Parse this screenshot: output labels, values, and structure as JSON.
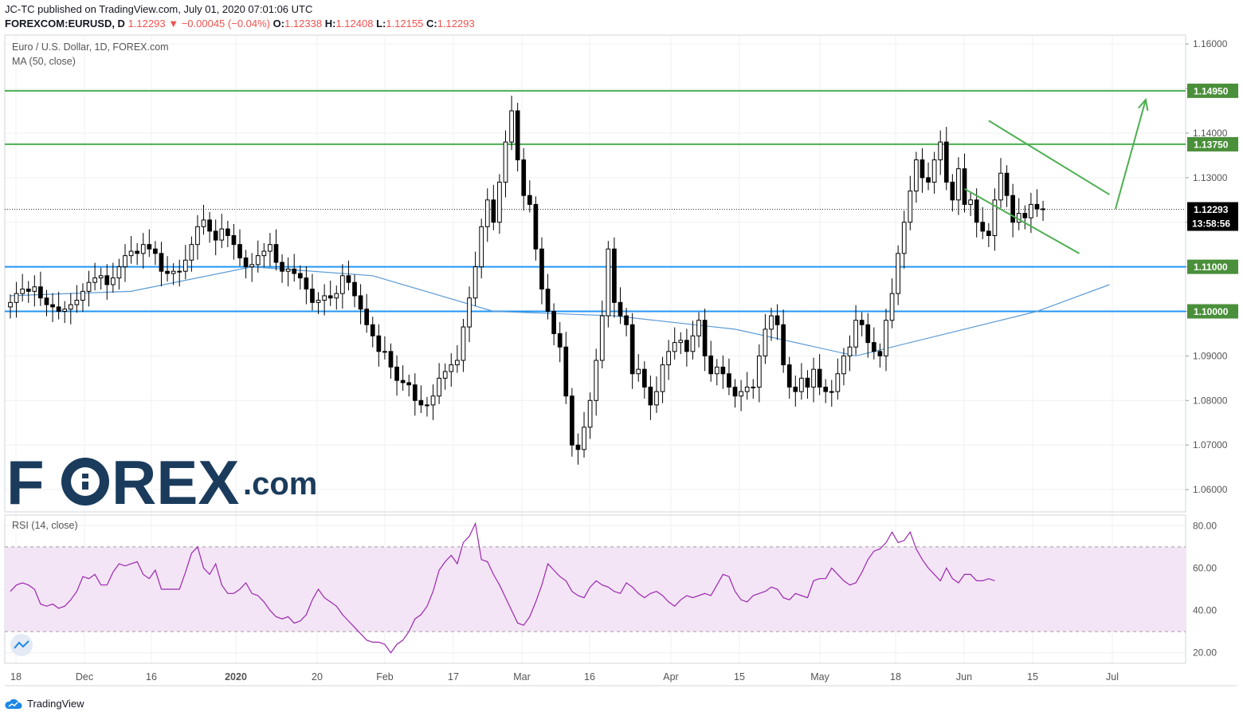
{
  "header": {
    "published_by": "JC-TC published on TradingView.com, July 01, 2020 07:01:06 UTC",
    "symbol": "FOREXCOM:EURUSD, D",
    "last": "1.12293",
    "change": "−0.00045 (−0.04%)",
    "open_label": "O:",
    "open": "1.12338",
    "high_label": "H:",
    "high": "1.12408",
    "low_label": "L:",
    "low": "1.12155",
    "close_label": "C:",
    "close": "1.12293"
  },
  "chart_title": "Euro / U.S. Dollar, 1D, FOREX.com",
  "ma_label": "MA (50, close)",
  "rsi_label": "RSI (14, close)",
  "watermark": {
    "text_a": "F",
    "text_b": "REX",
    "text_c": ".com"
  },
  "footer_brand": "TradingView",
  "colors": {
    "up": "#ffffff",
    "down": "#000000",
    "green_level": "#4caf50",
    "blue_level": "#2196f3",
    "ma": "#5b9bd5",
    "rsi": "#9c27b0",
    "rsi_band": "#f3e5f5"
  },
  "chart_data": [
    {
      "type": "candlestick",
      "title": "Euro / U.S. Dollar, 1D, FOREX.com",
      "ylim": [
        1.055,
        1.162
      ],
      "yticks": [
        "1.06000",
        "1.07000",
        "1.08000",
        "1.09000",
        "1.10000",
        "1.11000",
        "1.12000",
        "1.13000",
        "1.14000",
        "1.15000",
        "1.16000"
      ],
      "xticks": [
        "18",
        "Dec",
        "16",
        "2020",
        "20",
        "Feb",
        "17",
        "Mar",
        "16",
        "Apr",
        "15",
        "May",
        "18",
        "Jun",
        "15",
        "Jul"
      ],
      "price_labels": {
        "current": "1.12293",
        "countdown": "13:58:56"
      },
      "levels": [
        {
          "value": 1.1495,
          "label": "1.14950",
          "color": "#4caf50"
        },
        {
          "value": 1.1375,
          "label": "1.13750",
          "color": "#4caf50"
        },
        {
          "value": 1.11,
          "label": "1.11000",
          "color": "#2196f3"
        },
        {
          "value": 1.1,
          "label": "1.10000",
          "color": "#2196f3"
        }
      ],
      "closes": [
        1.102,
        1.104,
        1.105,
        1.1045,
        1.1055,
        1.103,
        1.1015,
        1.101,
        1.1,
        1.1005,
        1.1015,
        1.1025,
        1.1045,
        1.1065,
        1.1075,
        1.108,
        1.106,
        1.1075,
        1.11,
        1.1125,
        1.1135,
        1.113,
        1.115,
        1.114,
        1.113,
        1.109,
        1.1085,
        1.109,
        1.109,
        1.1115,
        1.115,
        1.119,
        1.1205,
        1.118,
        1.116,
        1.1185,
        1.117,
        1.115,
        1.112,
        1.11,
        1.1105,
        1.1125,
        1.1135,
        1.115,
        1.111,
        1.109,
        1.1095,
        1.1085,
        1.1075,
        1.105,
        1.102,
        1.1025,
        1.1035,
        1.103,
        1.104,
        1.108,
        1.1065,
        1.1035,
        1.1005,
        1.097,
        1.0945,
        1.091,
        1.091,
        1.0875,
        1.0845,
        1.084,
        1.0835,
        1.08,
        1.079,
        1.079,
        1.081,
        1.085,
        1.0865,
        1.088,
        1.089,
        1.0965,
        1.103,
        1.11,
        1.119,
        1.125,
        1.12,
        1.129,
        1.138,
        1.145,
        1.134,
        1.126,
        1.124,
        1.114,
        1.105,
        1.1,
        1.095,
        1.092,
        1.081,
        1.07,
        1.069,
        1.074,
        1.08,
        1.089,
        1.099,
        1.114,
        1.102,
        1.099,
        1.097,
        1.086,
        1.087,
        1.083,
        1.079,
        1.082,
        1.088,
        1.091,
        1.093,
        1.0935,
        1.091,
        1.0945,
        1.098,
        1.09,
        1.086,
        1.0875,
        1.086,
        1.083,
        1.081,
        1.082,
        1.083,
        1.083,
        1.09,
        1.096,
        1.099,
        1.097,
        1.088,
        1.083,
        1.082,
        1.085,
        1.083,
        1.087,
        1.083,
        1.082,
        1.082,
        1.086,
        1.09,
        1.092,
        1.098,
        1.097,
        1.093,
        1.091,
        1.09,
        1.098,
        1.104,
        1.113,
        1.12,
        1.127,
        1.134,
        1.13,
        1.129,
        1.134,
        1.138,
        1.129,
        1.125,
        1.132,
        1.124,
        1.125,
        1.12,
        1.118,
        1.117,
        1.125,
        1.131,
        1.126,
        1.12,
        1.122,
        1.121,
        1.124,
        1.123,
        1.1229
      ],
      "ma50": [
        {
          "i": 0,
          "v": 1.1035
        },
        {
          "i": 20,
          "v": 1.1045
        },
        {
          "i": 40,
          "v": 1.11
        },
        {
          "i": 60,
          "v": 1.108
        },
        {
          "i": 80,
          "v": 1.1
        },
        {
          "i": 100,
          "v": 1.099
        },
        {
          "i": 120,
          "v": 1.096
        },
        {
          "i": 140,
          "v": 1.09
        },
        {
          "i": 155,
          "v": 1.095
        },
        {
          "i": 170,
          "v": 1.1
        },
        {
          "i": 182,
          "v": 1.106
        }
      ],
      "patterns": {
        "channel_upper": [
          {
            "i": 162,
            "v": 1.1428
          },
          {
            "i": 182,
            "v": 1.1262
          }
        ],
        "channel_lower": [
          {
            "i": 158,
            "v": 1.1275
          },
          {
            "i": 177,
            "v": 1.113
          }
        ],
        "arrow": [
          {
            "i": 183,
            "v": 1.123
          },
          {
            "i": 188,
            "v": 1.1475
          }
        ]
      }
    },
    {
      "type": "line",
      "title": "RSI (14, close)",
      "ylim": [
        15,
        85
      ],
      "yticks": [
        "20.00",
        "40.00",
        "60.00",
        "80.00"
      ],
      "bands": [
        30,
        70
      ],
      "series": [
        {
          "values": [
            49,
            52,
            53,
            52,
            50,
            43,
            42,
            43,
            41,
            42,
            45,
            49,
            56,
            55,
            57,
            52,
            52,
            58,
            62,
            61,
            62,
            63,
            57,
            55,
            59,
            50,
            50,
            50,
            50,
            58,
            67,
            70,
            60,
            57,
            62,
            52,
            48,
            48,
            50,
            53,
            48,
            47,
            44,
            40,
            37,
            36,
            37,
            34,
            35,
            38,
            45,
            50,
            46,
            44,
            42,
            38,
            35,
            32,
            29,
            26,
            25,
            25,
            24,
            20,
            24,
            26,
            30,
            36,
            38,
            42,
            49,
            59,
            63,
            66,
            62,
            72,
            75,
            81,
            64,
            63,
            57,
            52,
            46,
            40,
            34,
            33,
            37,
            44,
            52,
            62,
            59,
            56,
            54,
            49,
            47,
            46,
            51,
            54,
            52,
            51,
            49,
            48,
            53,
            51,
            48,
            46,
            48,
            49,
            47,
            44,
            42,
            45,
            47,
            46,
            47,
            48,
            47,
            52,
            57,
            56,
            49,
            45,
            44,
            47,
            48,
            49,
            51,
            50,
            46,
            45,
            48,
            47,
            46,
            54,
            55,
            55,
            60,
            57,
            54,
            52,
            53,
            58,
            64,
            68,
            69,
            72,
            77,
            72,
            73,
            77,
            69,
            64,
            60,
            57,
            54,
            60,
            55,
            53,
            57,
            57,
            54,
            54,
            55,
            54
          ]
        }
      ]
    }
  ]
}
